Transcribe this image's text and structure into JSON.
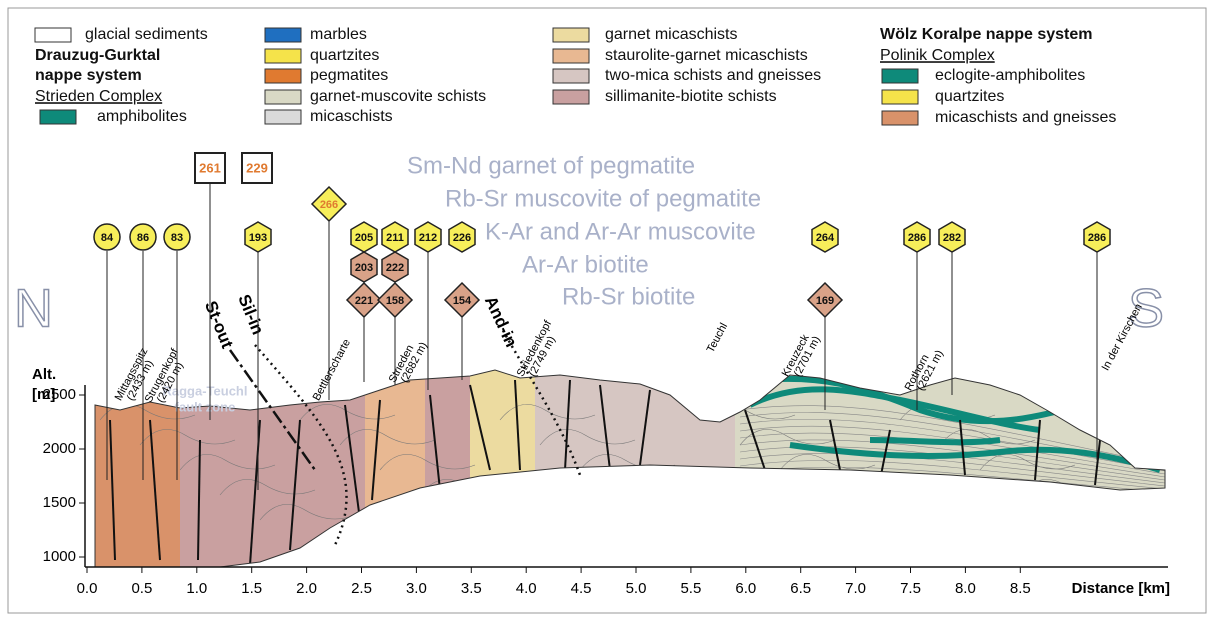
{
  "legend": {
    "glacial": {
      "label": "glacial sediments",
      "color": "#ffffff"
    },
    "drauzug": {
      "title": [
        "Drauzug-Gurktal",
        "nappe system"
      ],
      "complex": "Strieden Complex",
      "items": [
        {
          "label": "amphibolites",
          "color": "#0e8a7a"
        }
      ]
    },
    "units": [
      {
        "label": "marbles",
        "color": "#1f6fc0"
      },
      {
        "label": "quartzites",
        "color": "#f5e34a"
      },
      {
        "label": "pegmatites",
        "color": "#e07a30"
      },
      {
        "label": "garnet-muscovite schists",
        "color": "#d9d9c5"
      },
      {
        "label": "micaschists",
        "color": "#dadada"
      },
      {
        "label": "garnet micaschists",
        "color": "#ecdba0"
      },
      {
        "label": "staurolite-garnet micaschists",
        "color": "#e8b892"
      },
      {
        "label": "two-mica schists and gneisses",
        "color": "#d6c6c2"
      },
      {
        "label": "sillimanite-biotite schists",
        "color": "#c9a0a0"
      }
    ],
    "woelz": {
      "title": "Wölz Koralpe nappe system",
      "complex": "Polinik Complex",
      "items": [
        {
          "label": "eclogite-amphibolites",
          "color": "#0e8a7a"
        },
        {
          "label": "quartzites",
          "color": "#f5e34a"
        },
        {
          "label": "micaschists and gneisses",
          "color": "#d9926a"
        }
      ]
    }
  },
  "section": {
    "y_axis_label": [
      "Alt.",
      "[m]"
    ],
    "x_axis_label": "Distance [km]",
    "xticks": [
      "0.0",
      "0.5",
      "1.0",
      "1.5",
      "2.0",
      "2.5",
      "3.0",
      "3.5",
      "4.0",
      "4.5",
      "5.0",
      "5.5",
      "6.0",
      "6.5",
      "7.0",
      "7.5",
      "8.0",
      "8.5"
    ],
    "yticks": [
      "1000",
      "1500",
      "2000",
      "2500"
    ],
    "north": "N",
    "south": "S",
    "fault_zone": [
      "Ragga-Teuchl",
      "fault zone"
    ],
    "isograds": [
      "St-out",
      "Sil-in",
      "And-in"
    ],
    "methods": [
      "Sm-Nd garnet of pegmatite",
      "Rb-Sr muscovite of pegmatite",
      "K-Ar and Ar-Ar muscovite",
      "Ar-Ar biotite",
      "Rb-Sr biotite"
    ],
    "localities": [
      [
        "Mittagsspitz",
        "(2433 m)"
      ],
      [
        "Strugenkopf",
        "(2420 m)"
      ],
      [
        "Bettlerscharte"
      ],
      [
        "Strieden",
        "(2682 m)"
      ],
      [
        "Striedenkopf",
        "(2749 m)"
      ],
      [
        "Teuchl"
      ],
      [
        "Kreuzeck",
        "(2701 m)"
      ],
      [
        "Rothorn",
        "(2621 m)"
      ],
      [
        "In der Kirschen"
      ]
    ],
    "ages": [
      {
        "value": 84,
        "shape": "circle",
        "color": "#f7ee5a"
      },
      {
        "value": 86,
        "shape": "circle",
        "color": "#f7ee5a"
      },
      {
        "value": 83,
        "shape": "circle",
        "color": "#f7ee5a"
      },
      {
        "value": 261,
        "shape": "square",
        "color": "#ffffff"
      },
      {
        "value": 229,
        "shape": "square",
        "color": "#ffffff"
      },
      {
        "value": 193,
        "shape": "hexagon",
        "color": "#f7ee5a"
      },
      {
        "value": 266,
        "shape": "diamond",
        "color": "#f7ee5a"
      },
      {
        "value": 205,
        "shape": "hexagon",
        "color": "#f7ee5a"
      },
      {
        "value": 211,
        "shape": "hexagon",
        "color": "#f7ee5a"
      },
      {
        "value": 212,
        "shape": "hexagon",
        "color": "#f7ee5a"
      },
      {
        "value": 226,
        "shape": "hexagon",
        "color": "#f7ee5a"
      },
      {
        "value": 203,
        "shape": "hexagon",
        "color": "#d9a288"
      },
      {
        "value": 222,
        "shape": "hexagon",
        "color": "#d9a288"
      },
      {
        "value": 221,
        "shape": "diamond",
        "color": "#d9a288"
      },
      {
        "value": 158,
        "shape": "diamond",
        "color": "#d9a288"
      },
      {
        "value": 154,
        "shape": "diamond",
        "color": "#d9a288"
      },
      {
        "value": 264,
        "shape": "hexagon",
        "color": "#f7ee5a"
      },
      {
        "value": 169,
        "shape": "diamond",
        "color": "#d9a288"
      },
      {
        "value": 286,
        "shape": "hexagon",
        "color": "#f7ee5a"
      },
      {
        "value": 282,
        "shape": "hexagon",
        "color": "#f7ee5a"
      },
      {
        "value": 286,
        "shape": "hexagon",
        "color": "#f7ee5a"
      }
    ]
  }
}
